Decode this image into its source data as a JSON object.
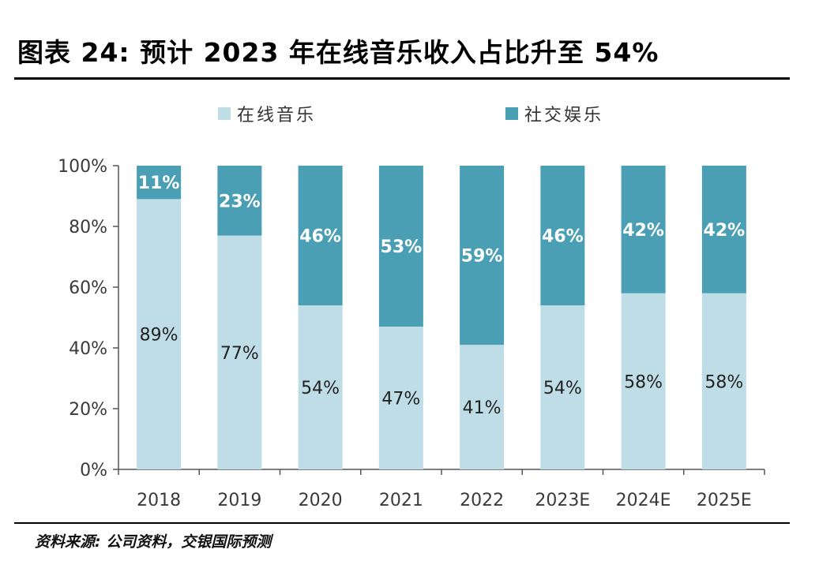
{
  "title": "图表 24: 预计 2023 年在线音乐收入占比升至 54%",
  "source": "资料来源: 公司资料，交银国际预测",
  "colors": {
    "online": "#bfdde7",
    "social": "#4a9fb4",
    "axis": "#555555",
    "tick_text": "#3a3a3a"
  },
  "chart_data": {
    "type": "bar",
    "stacked": true,
    "title": "预计 2023 年在线音乐收入占比升至 54%",
    "xlabel": "",
    "ylabel": "",
    "ylim": [
      0,
      100
    ],
    "yticks": [
      "0%",
      "20%",
      "40%",
      "60%",
      "80%",
      "100%"
    ],
    "categories": [
      "2018",
      "2019",
      "2020",
      "2021",
      "2022",
      "2023E",
      "2024E",
      "2025E"
    ],
    "legend_position": "top",
    "series": [
      {
        "name": "在线音乐",
        "values": [
          89,
          77,
          54,
          47,
          41,
          54,
          58,
          58
        ],
        "labels": [
          "89%",
          "77%",
          "54%",
          "47%",
          "41%",
          "54%",
          "58%",
          "58%"
        ]
      },
      {
        "name": "社交娱乐",
        "values": [
          11,
          23,
          46,
          53,
          59,
          46,
          42,
          42
        ],
        "labels": [
          "11%",
          "23%",
          "46%",
          "53%",
          "59%",
          "46%",
          "42%",
          "42%"
        ]
      }
    ]
  }
}
